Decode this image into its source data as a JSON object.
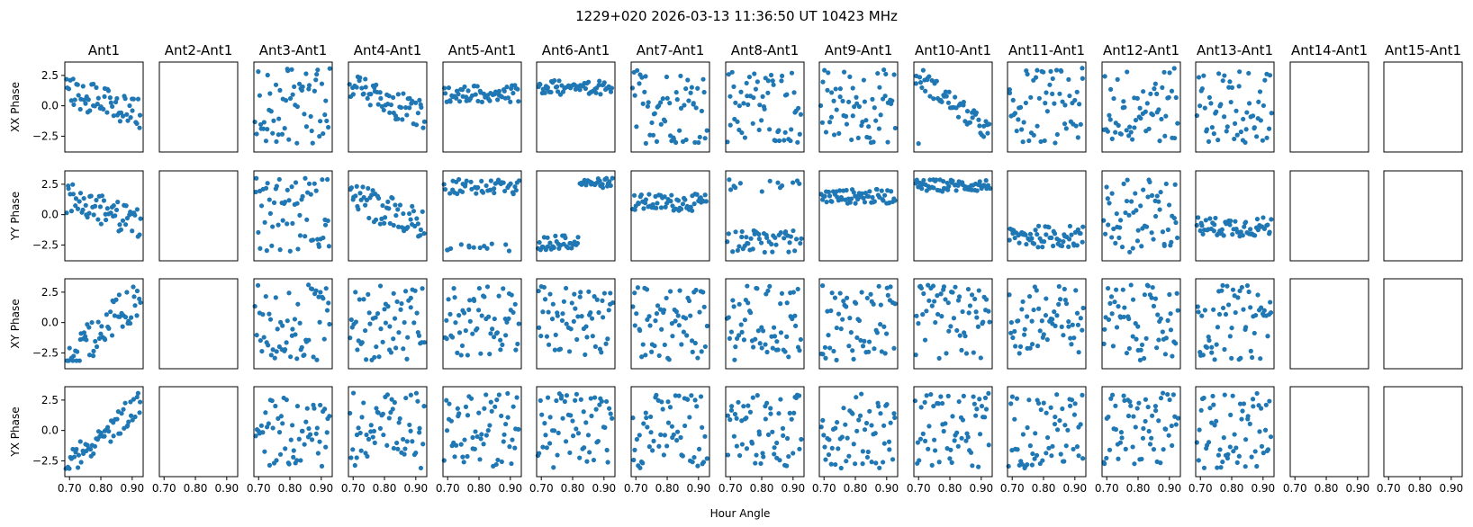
{
  "figure": {
    "title": "1229+020  2026-03-13 11:36:50 UT  10423 MHz",
    "xlabel": "Hour Angle",
    "marker_color": "#1f77b4"
  },
  "chart_data": {
    "type": "scatter",
    "title": "1229+020  2026-03-13 11:36:50 UT  10423 MHz",
    "xlabel": "Hour Angle",
    "layout": "grid of 4 rows x 15 columns, shared x axis",
    "columns": [
      "Ant1",
      "Ant2-Ant1",
      "Ant3-Ant1",
      "Ant4-Ant1",
      "Ant5-Ant1",
      "Ant6-Ant1",
      "Ant7-Ant1",
      "Ant8-Ant1",
      "Ant9-Ant1",
      "Ant10-Ant1",
      "Ant11-Ant1",
      "Ant12-Ant1",
      "Ant13-Ant1",
      "Ant14-Ant1",
      "Ant15-Ant1"
    ],
    "rows": [
      "XX Phase",
      "YY Phase",
      "XY Phase",
      "YX Phase"
    ],
    "xlim": [
      0.685,
      0.935
    ],
    "ylim": [
      -3.8,
      3.6
    ],
    "xticks": [
      0.7,
      0.8,
      0.9
    ],
    "xtick_labels": [
      "0.70",
      "0.80",
      "0.90"
    ],
    "yticks": [
      2.5,
      0.0,
      -2.5
    ],
    "ytick_labels": [
      "2.5",
      "0.0",
      "−2.5"
    ],
    "empty_columns": [
      "Ant2-Ant1",
      "Ant14-Ant1",
      "Ant15-Ant1"
    ],
    "x_samples": {
      "start": 0.69,
      "step": 0.004,
      "count": 60
    },
    "patterns": {
      "Ant1": [
        "drift-down",
        "drift-down",
        "linear-low",
        "linear-up"
      ],
      "Ant3-Ant1": [
        "random",
        "random",
        "random",
        "random"
      ],
      "Ant4-Ant1": [
        "drift-down",
        "drift-down",
        "random",
        "random"
      ],
      "Ant5-Ant1": [
        "flat-1",
        "bimodal-2.5",
        "random",
        "random"
      ],
      "Ant6-Ant1": [
        "flat-1.5",
        "step",
        "random",
        "random"
      ],
      "Ant7-Ant1": [
        "random",
        "flat-1",
        "random",
        "random"
      ],
      "Ant8-Ant1": [
        "random",
        "band-low",
        "random",
        "random"
      ],
      "Ant9-Ant1": [
        "random",
        "flat-1.5",
        "random",
        "random"
      ],
      "Ant10-Ant1": [
        "wrap",
        "flat-2.5",
        "random",
        "random"
      ],
      "Ant11-Ant1": [
        "random",
        "flat-neg2",
        "random",
        "random"
      ],
      "Ant12-Ant1": [
        "random",
        "random",
        "random",
        "random"
      ],
      "Ant13-Ant1": [
        "random",
        "flat-neg1",
        "random",
        "random"
      ]
    }
  }
}
